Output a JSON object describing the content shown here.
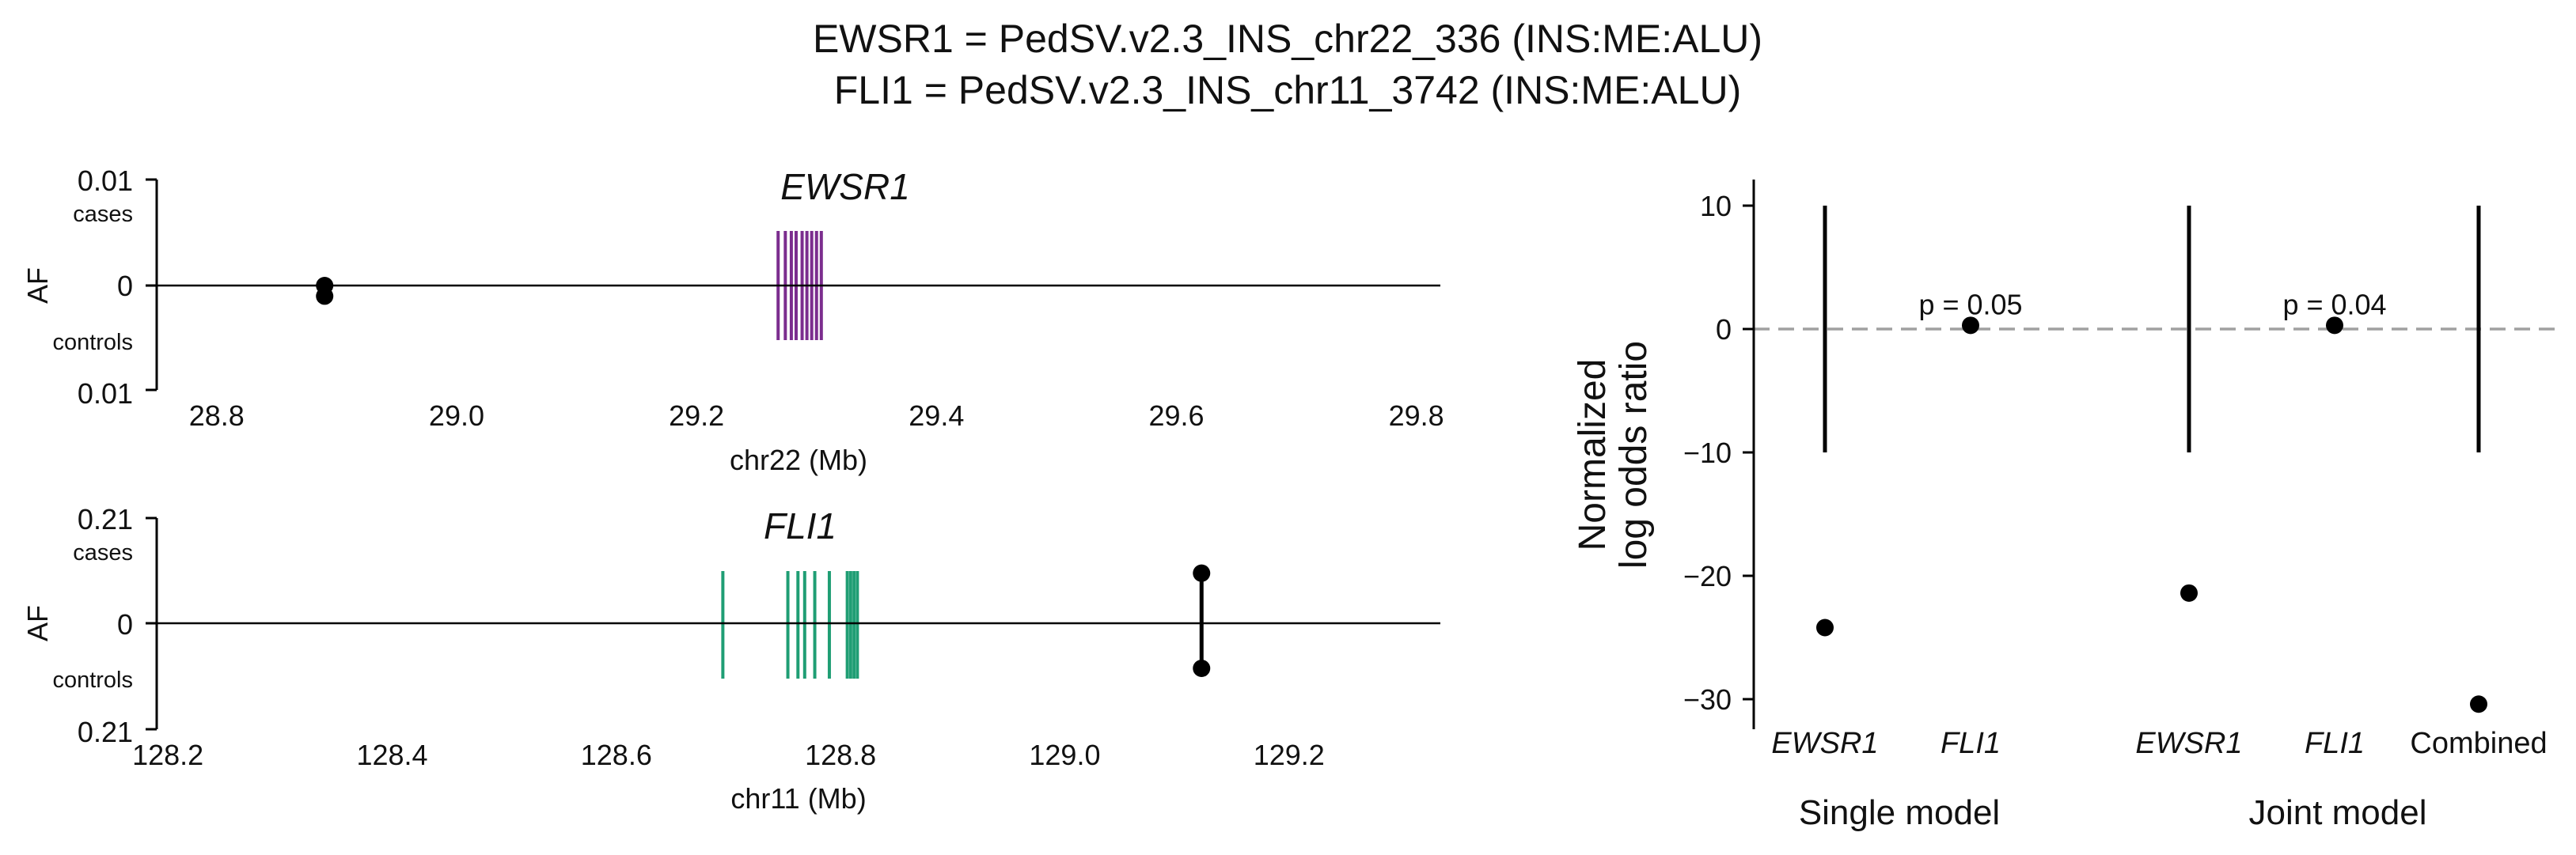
{
  "title_lines": [
    "EWSR1 = PedSV.v2.3_INS_chr22_336 (INS:ME:ALU)",
    "FLI1 = PedSV.v2.3_INS_chr11_3742 (INS:ME:ALU)"
  ],
  "colors": {
    "ewsr1_gene": "#7b2d8e",
    "fli1_gene": "#1f9e74",
    "points": "#000000",
    "reference_line": "#a0a0a0"
  },
  "chart_data": [
    {
      "type": "scatter",
      "panel": "EWSR1 locus",
      "gene_label": "EWSR1",
      "xlabel": "chr22 (Mb)",
      "ylabel": "AF",
      "x_ticks": [
        "28.8",
        "29.0",
        "29.2",
        "29.4",
        "29.6",
        "29.8"
      ],
      "xlim": [
        28.75,
        29.82
      ],
      "y_ticks": [
        "0.01",
        "0",
        "0.01"
      ],
      "y_tick_sublabels": [
        "cases",
        "controls"
      ],
      "ylim": [
        -0.01,
        0.01
      ],
      "gene_exons_mb": [
        29.268,
        29.274,
        29.279,
        29.283,
        29.288,
        29.292,
        29.296,
        29.3,
        29.304
      ],
      "gene_color": "#7b2d8e",
      "variants": [
        {
          "x": 28.89,
          "af_cases": 0.0,
          "af_controls": 0.001
        }
      ]
    },
    {
      "type": "scatter",
      "panel": "FLI1 locus",
      "gene_label": "FLI1",
      "xlabel": "chr11 (Mb)",
      "ylabel": "AF",
      "x_ticks": [
        "128.2",
        "128.4",
        "128.6",
        "128.8",
        "129.0",
        "129.2"
      ],
      "xlim": [
        128.19,
        129.335
      ],
      "y_ticks": [
        "0.21",
        "0",
        "0.21"
      ],
      "y_tick_sublabels": [
        "cases",
        "controls"
      ],
      "ylim": [
        -0.21,
        0.21
      ],
      "gene_exons_mb": [
        128.695,
        128.753,
        128.762,
        128.768,
        128.777,
        128.79,
        128.806,
        128.809,
        128.812,
        128.815
      ],
      "gene_color": "#1f9e74",
      "variants": [
        {
          "x": 129.122,
          "af_cases": 0.1,
          "af_controls": 0.09
        }
      ]
    },
    {
      "type": "scatter",
      "panel": "model estimates",
      "ylabel_lines": [
        "Normalized",
        "log odds ratio"
      ],
      "y_ticks": [
        "10",
        "0",
        "−10",
        "−20",
        "−30"
      ],
      "ylim": [
        -31.5,
        12
      ],
      "reference_y": 0,
      "categories": [
        "EWSR1",
        "FLI1",
        "EWSR1",
        "FLI1",
        "Combined"
      ],
      "italic_categories": [
        true,
        true,
        true,
        true,
        false
      ],
      "groups": [
        {
          "label": "Single model",
          "members": [
            0,
            1
          ]
        },
        {
          "label": "Joint model",
          "members": [
            2,
            3,
            4
          ]
        }
      ],
      "points": [
        {
          "category_index": 0,
          "estimate": -24.2,
          "ci_low": -10,
          "ci_high": 10,
          "annotation": ""
        },
        {
          "category_index": 1,
          "estimate": 0.3,
          "annotation": "p = 0.05"
        },
        {
          "category_index": 2,
          "estimate": -21.4,
          "ci_low": -10,
          "ci_high": 10,
          "annotation": ""
        },
        {
          "category_index": 3,
          "estimate": 0.3,
          "annotation": "p = 0.04"
        },
        {
          "category_index": 4,
          "estimate": -30.4,
          "ci_low": -10,
          "ci_high": 10,
          "annotation": ""
        }
      ]
    }
  ]
}
